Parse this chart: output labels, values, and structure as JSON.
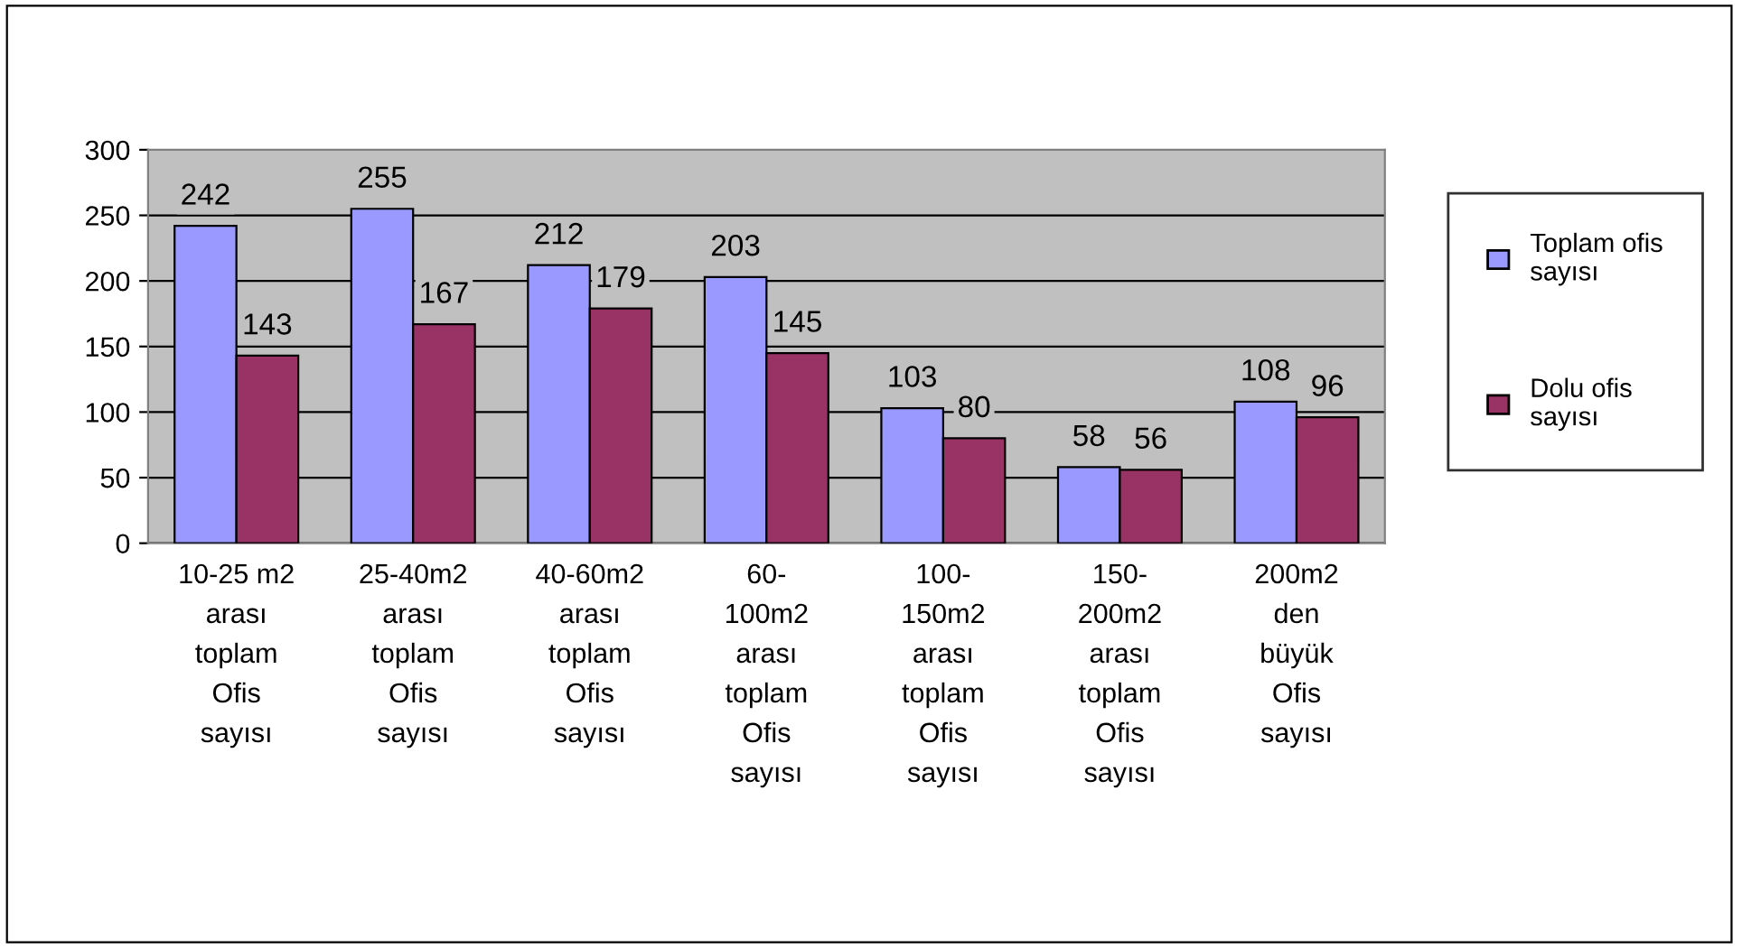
{
  "chart_data": {
    "type": "bar",
    "categories": [
      "10-25 m2\narası\ntoplam\nOfis\nsayısı",
      "25-40m2\narası\ntoplam\nOfis\nsayısı",
      "40-60m2\narası\ntoplam\nOfis\nsayısı",
      "60-\n100m2\narası\ntoplam\nOfis\nsayısı",
      "100-\n150m2\narası\ntoplam\nOfis\nsayısı",
      "150-\n200m2\narası\ntoplam\nOfis\nsayısı",
      "200m2\nden\nbüyük\nOfis\nsayısı"
    ],
    "series": [
      {
        "name": "Toplam ofis\nsayısı",
        "color": "#9999ff",
        "values": [
          242,
          255,
          212,
          203,
          103,
          58,
          108
        ]
      },
      {
        "name": "Dolu ofis\nsayısı",
        "color": "#993366",
        "values": [
          143,
          167,
          179,
          145,
          80,
          56,
          96
        ]
      }
    ],
    "ylim": [
      0,
      300
    ],
    "yticks": [
      0,
      50,
      100,
      150,
      200,
      250,
      300
    ],
    "grid": "y",
    "legend": "right",
    "data_labels": true
  }
}
